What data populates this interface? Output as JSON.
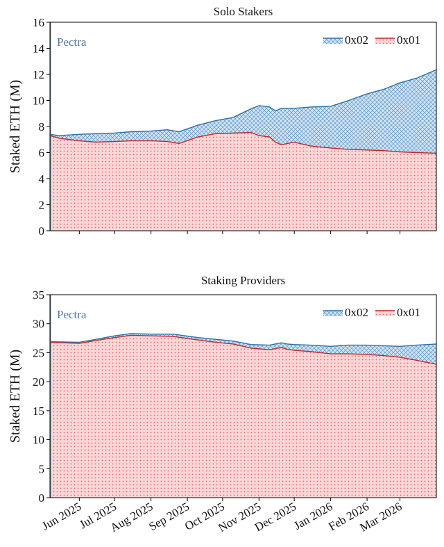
{
  "x_ticks": [
    "Jun 2025",
    "Jul 2025",
    "Aug 2025",
    "Sep 2025",
    "Oct 2025",
    "Nov 2025",
    "Dec 2025",
    "Jan 2026",
    "Feb 2026",
    "Mar 2026"
  ],
  "colors": {
    "series_0x02_fill": "#cfe3f3",
    "series_0x02_line": "#2f6fa8",
    "series_0x01_fill": "#fbd6d6",
    "series_0x01_line": "#c0272d",
    "annotation": "#5a7a9a",
    "axis": "#000000"
  },
  "chart_data": [
    {
      "type": "area",
      "stacked": true,
      "title": "Solo Stakers",
      "ylabel": "Staked ETH (M)",
      "ylim": [
        0,
        16
      ],
      "yticks": [
        0,
        2,
        4,
        6,
        8,
        10,
        12,
        14,
        16
      ],
      "xlim": [
        "2025-05-07",
        "2026-04-01"
      ],
      "legend": "top-right",
      "annotation": "Pectra",
      "x": [
        "2025-05-07",
        "2025-05-15",
        "2025-06-01",
        "2025-06-15",
        "2025-07-01",
        "2025-07-15",
        "2025-08-01",
        "2025-08-15",
        "2025-08-25",
        "2025-09-10",
        "2025-09-25",
        "2025-10-10",
        "2025-10-25",
        "2025-11-01",
        "2025-11-10",
        "2025-11-15",
        "2025-11-20",
        "2025-12-01",
        "2025-12-15",
        "2026-01-01",
        "2026-01-15",
        "2026-02-01",
        "2026-02-15",
        "2026-03-01",
        "2026-03-15",
        "2026-04-01"
      ],
      "series": [
        {
          "name": "0x01",
          "hatch": "dots",
          "values": [
            7.3,
            7.1,
            6.9,
            6.8,
            6.85,
            6.9,
            6.9,
            6.85,
            6.7,
            7.2,
            7.45,
            7.5,
            7.55,
            7.3,
            7.2,
            6.8,
            6.6,
            6.8,
            6.5,
            6.35,
            6.25,
            6.2,
            6.15,
            6.05,
            6.0,
            5.95
          ]
        },
        {
          "name": "0x02",
          "hatch": "crosshatch",
          "values": [
            0.1,
            0.2,
            0.5,
            0.65,
            0.65,
            0.7,
            0.75,
            0.9,
            0.9,
            0.9,
            1.0,
            1.2,
            1.8,
            2.3,
            2.3,
            2.4,
            2.8,
            2.6,
            3.0,
            3.2,
            3.7,
            4.3,
            4.7,
            5.3,
            5.7,
            6.4
          ]
        }
      ]
    },
    {
      "type": "area",
      "stacked": true,
      "title": "Staking Providers",
      "ylabel": "Staked ETH (M)",
      "ylim": [
        0,
        35
      ],
      "yticks": [
        0,
        5,
        10,
        15,
        20,
        25,
        30,
        35
      ],
      "xlim": [
        "2025-05-07",
        "2026-04-01"
      ],
      "legend": "top-right",
      "annotation": "Pectra",
      "x": [
        "2025-05-07",
        "2025-06-01",
        "2025-06-15",
        "2025-07-01",
        "2025-07-15",
        "2025-08-01",
        "2025-08-20",
        "2025-09-10",
        "2025-09-25",
        "2025-10-10",
        "2025-10-25",
        "2025-11-10",
        "2025-11-20",
        "2025-11-25",
        "2025-12-01",
        "2025-12-15",
        "2026-01-01",
        "2026-01-15",
        "2026-02-01",
        "2026-02-15",
        "2026-03-01",
        "2026-03-15",
        "2026-04-01"
      ],
      "series": [
        {
          "name": "0x01",
          "hatch": "dots",
          "values": [
            26.8,
            26.6,
            27.1,
            27.6,
            28.0,
            27.9,
            27.8,
            27.2,
            26.8,
            26.5,
            25.8,
            25.5,
            25.9,
            25.6,
            25.4,
            25.2,
            24.8,
            24.8,
            24.7,
            24.5,
            24.2,
            23.7,
            23.0
          ]
        },
        {
          "name": "0x02",
          "hatch": "crosshatch",
          "values": [
            0.1,
            0.2,
            0.2,
            0.3,
            0.3,
            0.3,
            0.4,
            0.4,
            0.5,
            0.5,
            0.6,
            0.8,
            0.8,
            0.9,
            1.0,
            1.1,
            1.3,
            1.5,
            1.6,
            1.7,
            1.9,
            2.6,
            3.5
          ]
        }
      ]
    }
  ]
}
